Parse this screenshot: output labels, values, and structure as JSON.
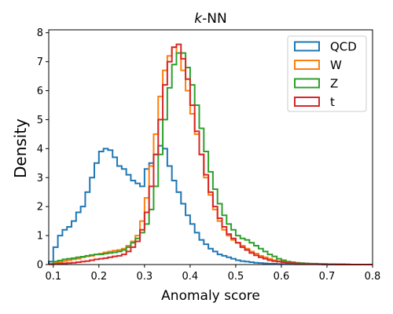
{
  "chart_data": {
    "type": "step-histogram",
    "title_italic": "k",
    "title_rest": "-NN",
    "xlabel": "Anomaly score",
    "ylabel": "Density",
    "xlim": [
      0.09,
      0.8
    ],
    "ylim": [
      0,
      8.1
    ],
    "xticks": [
      "0.1",
      "0.2",
      "0.3",
      "0.4",
      "0.5",
      "0.6",
      "0.7",
      "0.8"
    ],
    "yticks": [
      "0",
      "1",
      "2",
      "3",
      "4",
      "5",
      "6",
      "7",
      "8"
    ],
    "legend_position": "top-right",
    "bin_edges": [
      0.09,
      0.1,
      0.11,
      0.12,
      0.13,
      0.14,
      0.15,
      0.16,
      0.17,
      0.18,
      0.19,
      0.2,
      0.21,
      0.22,
      0.23,
      0.24,
      0.25,
      0.26,
      0.27,
      0.28,
      0.29,
      0.3,
      0.31,
      0.32,
      0.33,
      0.34,
      0.35,
      0.36,
      0.37,
      0.38,
      0.39,
      0.4,
      0.41,
      0.42,
      0.43,
      0.44,
      0.45,
      0.46,
      0.47,
      0.48,
      0.49,
      0.5,
      0.51,
      0.52,
      0.53,
      0.54,
      0.55,
      0.56,
      0.57,
      0.58,
      0.59,
      0.6,
      0.61,
      0.62,
      0.63,
      0.64,
      0.65,
      0.66,
      0.67,
      0.68,
      0.69,
      0.7,
      0.71,
      0.72,
      0.73,
      0.74,
      0.75,
      0.76,
      0.77,
      0.78,
      0.79,
      0.8
    ],
    "series": [
      {
        "name": "QCD",
        "color": "#1f77b4",
        "values": [
          0.1,
          0.6,
          1.0,
          1.2,
          1.3,
          1.5,
          1.8,
          2.0,
          2.5,
          3.0,
          3.5,
          3.9,
          4.0,
          3.95,
          3.7,
          3.4,
          3.3,
          3.1,
          2.9,
          2.8,
          2.7,
          3.3,
          3.5,
          3.8,
          4.1,
          4.0,
          3.4,
          2.9,
          2.5,
          2.1,
          1.7,
          1.4,
          1.1,
          0.85,
          0.7,
          0.55,
          0.45,
          0.35,
          0.3,
          0.25,
          0.2,
          0.15,
          0.12,
          0.1,
          0.08,
          0.06,
          0.05,
          0.04,
          0.03,
          0.03,
          0.02,
          0.02,
          0.02,
          0.02,
          0.01,
          0.01,
          0.01,
          0.01,
          0.01,
          0.01,
          0,
          0,
          0,
          0,
          0,
          0,
          0,
          0,
          0,
          0,
          0
        ]
      },
      {
        "name": "W",
        "color": "#ff7f0e",
        "values": [
          0.02,
          0.05,
          0.08,
          0.12,
          0.15,
          0.18,
          0.2,
          0.25,
          0.28,
          0.3,
          0.35,
          0.38,
          0.42,
          0.45,
          0.48,
          0.5,
          0.55,
          0.65,
          0.8,
          1.0,
          1.5,
          2.3,
          3.4,
          4.5,
          5.8,
          6.7,
          7.2,
          7.5,
          7.3,
          6.7,
          6.0,
          5.2,
          4.5,
          3.8,
          3.0,
          2.4,
          1.9,
          1.5,
          1.2,
          1.0,
          0.85,
          0.75,
          0.65,
          0.55,
          0.45,
          0.38,
          0.3,
          0.25,
          0.2,
          0.15,
          0.12,
          0.1,
          0.08,
          0.06,
          0.05,
          0.04,
          0.03,
          0.03,
          0.02,
          0.02,
          0.01,
          0.01,
          0.01,
          0.01,
          0.01,
          0.01,
          0,
          0,
          0,
          0,
          0
        ]
      },
      {
        "name": "Z",
        "color": "#2ca02c",
        "values": [
          0.02,
          0.1,
          0.14,
          0.18,
          0.2,
          0.22,
          0.25,
          0.27,
          0.3,
          0.33,
          0.35,
          0.35,
          0.38,
          0.4,
          0.42,
          0.45,
          0.5,
          0.6,
          0.75,
          0.9,
          1.1,
          1.4,
          1.9,
          2.7,
          3.8,
          5.0,
          6.1,
          6.9,
          7.3,
          7.3,
          6.8,
          6.2,
          5.5,
          4.7,
          3.9,
          3.2,
          2.6,
          2.1,
          1.7,
          1.4,
          1.2,
          1.0,
          0.9,
          0.85,
          0.75,
          0.65,
          0.55,
          0.45,
          0.35,
          0.28,
          0.2,
          0.15,
          0.1,
          0.08,
          0.06,
          0.05,
          0.04,
          0.03,
          0.03,
          0.02,
          0.02,
          0.01,
          0.01,
          0.01,
          0.01,
          0,
          0,
          0,
          0,
          0,
          0
        ]
      },
      {
        "name": "t",
        "color": "#d62728",
        "values": [
          0.01,
          0.02,
          0.03,
          0.04,
          0.05,
          0.06,
          0.08,
          0.1,
          0.12,
          0.15,
          0.18,
          0.2,
          0.22,
          0.25,
          0.28,
          0.3,
          0.35,
          0.45,
          0.6,
          0.8,
          1.2,
          1.8,
          2.7,
          3.8,
          5.0,
          6.2,
          7.0,
          7.5,
          7.6,
          7.1,
          6.4,
          5.5,
          4.6,
          3.8,
          3.1,
          2.5,
          2.0,
          1.6,
          1.3,
          1.05,
          0.9,
          0.75,
          0.6,
          0.5,
          0.4,
          0.32,
          0.25,
          0.2,
          0.15,
          0.12,
          0.1,
          0.08,
          0.06,
          0.05,
          0.04,
          0.03,
          0.03,
          0.02,
          0.02,
          0.01,
          0.01,
          0.01,
          0.01,
          0,
          0,
          0,
          0,
          0,
          0,
          0,
          0
        ]
      }
    ]
  }
}
